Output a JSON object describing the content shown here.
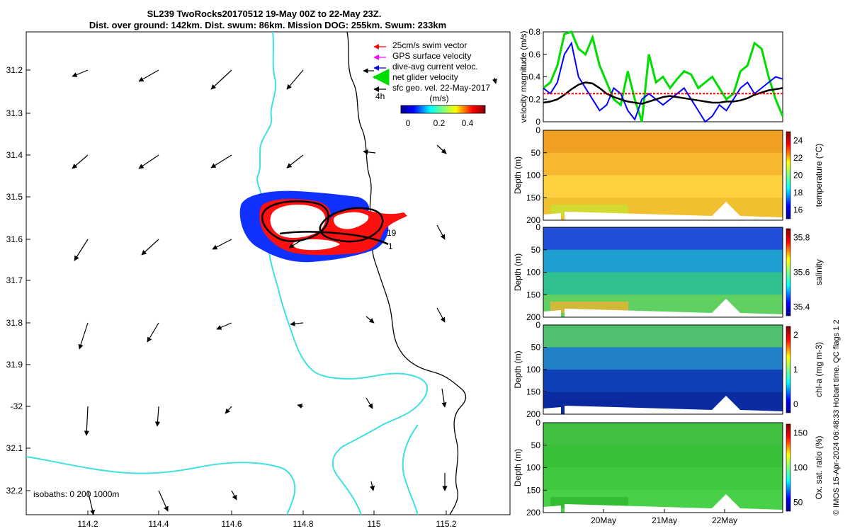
{
  "title": {
    "line1": "SL239 TwoRocks20170512 19-May 00Z to 22-May 23Z.",
    "line2": "Dist. over ground: 142km. Dist. swum: 86km. Mission DOG: 255km. Swum: 233km"
  },
  "footer_vertical": "© IMOS 15-Apr-2024 06:48:33 Hobart time. QC flags 1  2",
  "map": {
    "lon_ticks": [
      "114.2",
      "114.4",
      "114.6",
      "114.8",
      "115",
      "115.2"
    ],
    "lat_ticks": [
      "31.2",
      "31.3",
      "31.4",
      "31.5",
      "31.6",
      "31.7",
      "31.8",
      "31.9",
      "-32",
      "32.1",
      "32.2"
    ],
    "legend": [
      {
        "label": "25cm/s swim vector",
        "color": "#ff0000"
      },
      {
        "label": "GPS surface velocity",
        "color": "#ff00ff"
      },
      {
        "label": "dive-avg current veloc.",
        "color": "#0000ff"
      },
      {
        "label": "net glider velocity",
        "color": "#00dd00"
      },
      {
        "label": "sfc geo. vel. 22-May-2017",
        "color": "#000000"
      }
    ],
    "note_4h": "4h",
    "colorbar_unit": "(m/s)",
    "colorbar_ticks": [
      "0",
      "0.2",
      "0.4"
    ],
    "isobaths": "isobaths: 0  200  1000m",
    "label_19": "19",
    "label_1": "1",
    "coast_color": "#40e0e0",
    "isobath_color": "#000000"
  },
  "chart_data": [
    {
      "type": "line",
      "ylabel": "velocity magnitude (m/s)",
      "ylim": [
        0,
        0.8
      ],
      "y_ticks": [
        "0",
        "0.2",
        "0.4",
        "0.6",
        "0.8"
      ],
      "series": [
        {
          "color": "#00dd00",
          "values": [
            0.3,
            0.35,
            0.5,
            0.78,
            0.8,
            0.65,
            0.6,
            0.75,
            0.5,
            0.35,
            0.2,
            0.15,
            0.45,
            0.2,
            0.0,
            0.6,
            0.35,
            0.4,
            0.3,
            0.38,
            0.45,
            0.42,
            0.3,
            0.35,
            0.4,
            0.3,
            0.2,
            0.25,
            0.45,
            0.5,
            0.7,
            0.65,
            0.4,
            0.2,
            0.05
          ]
        },
        {
          "color": "#0000ff",
          "values": [
            0.3,
            0.25,
            0.35,
            0.6,
            0.7,
            0.4,
            0.3,
            0.2,
            0.1,
            0.15,
            0.3,
            0.25,
            0.1,
            0.02,
            0.2,
            0.25,
            0.2,
            0.15,
            0.2,
            0.25,
            0.3,
            0.2,
            0.1,
            0.0,
            0.05,
            0.15,
            0.1,
            0.2,
            0.3,
            0.35,
            0.25,
            0.3,
            0.35,
            0.4,
            0.38
          ]
        },
        {
          "color": "#000000",
          "values": [
            0.17,
            0.18,
            0.2,
            0.24,
            0.29,
            0.33,
            0.35,
            0.34,
            0.3,
            0.25,
            0.22,
            0.2,
            0.18,
            0.17,
            0.16,
            0.18,
            0.2,
            0.22,
            0.23,
            0.22,
            0.21,
            0.2,
            0.19,
            0.18,
            0.17,
            0.17,
            0.18,
            0.18,
            0.19,
            0.21,
            0.24,
            0.26,
            0.28,
            0.29,
            0.3
          ]
        },
        {
          "color": "#ff0000",
          "values": [
            0.25,
            0.25,
            0.25,
            0.25,
            0.25,
            0.25,
            0.25,
            0.25,
            0.25,
            0.25,
            0.25,
            0.25,
            0.25,
            0.25,
            0.25,
            0.25,
            0.25,
            0.25,
            0.25,
            0.25,
            0.25,
            0.25,
            0.25,
            0.25,
            0.25,
            0.25,
            0.25,
            0.25,
            0.25,
            0.25,
            0.25,
            0.25,
            0.25,
            0.25,
            0.25
          ]
        }
      ]
    },
    {
      "type": "heatmap",
      "ylabel": "Depth (m)",
      "y_ticks": [
        "0",
        "50",
        "100",
        "150",
        "200"
      ],
      "colorbar_label": "temperature (°C)",
      "colorbar_ticks": [
        "16",
        "18",
        "20",
        "22",
        "24"
      ]
    },
    {
      "type": "heatmap",
      "ylabel": "Depth (m)",
      "y_ticks": [
        "0",
        "50",
        "100",
        "150",
        "200"
      ],
      "colorbar_label": "salinity",
      "colorbar_ticks": [
        "35.4",
        "35.6",
        "35.8"
      ]
    },
    {
      "type": "heatmap",
      "ylabel": "Depth (m)",
      "y_ticks": [
        "0",
        "50",
        "100",
        "150",
        "200"
      ],
      "colorbar_label": "chl-a (mg m-3)",
      "colorbar_ticks": [
        "0",
        "1",
        "2"
      ]
    },
    {
      "type": "heatmap",
      "ylabel": "Depth (m)",
      "y_ticks": [
        "0",
        "50",
        "100",
        "150",
        "200"
      ],
      "colorbar_label": "Ox. sat. ratio (%)",
      "colorbar_ticks": [
        "50",
        "100",
        "150"
      ],
      "x_ticks": [
        "20May",
        "21May",
        "22May"
      ]
    }
  ]
}
